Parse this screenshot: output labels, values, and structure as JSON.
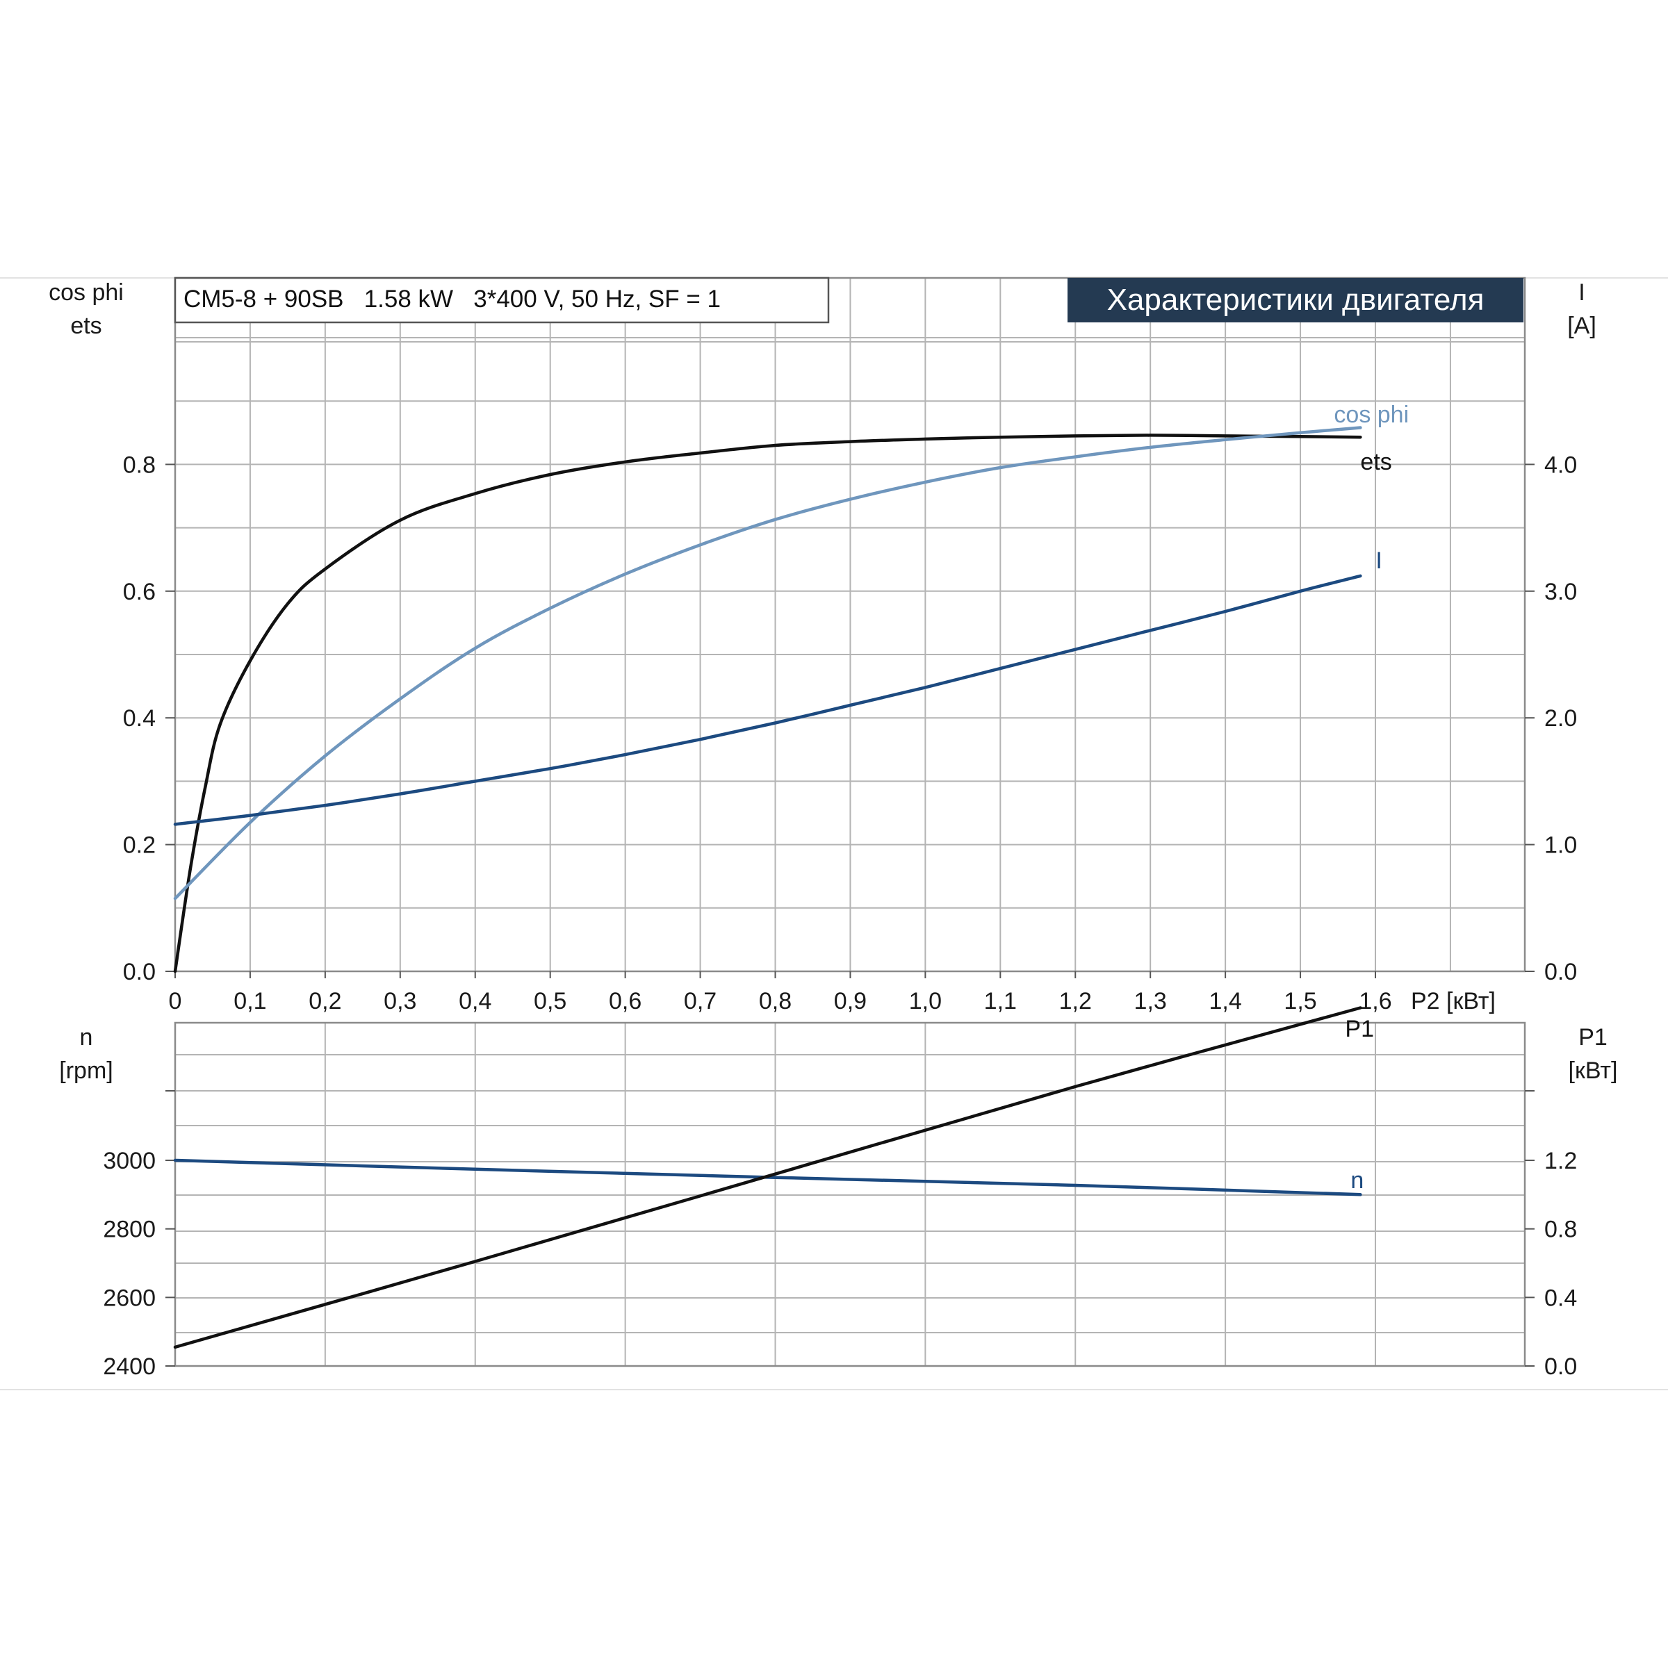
{
  "colors": {
    "ets": "#111111",
    "cos_phi": "#6f96bd",
    "I": "#1c4a80",
    "n": "#1c4a80",
    "P1": "#111111",
    "title_badge_bg": "#243a52",
    "title_badge_text": "#ffffff",
    "grid": "#b4b4b4"
  },
  "header": {
    "model_info": "CM5-8 + 90SB   1.58 kW   3*400 V, 50 Hz, SF = 1",
    "title": "Характеристики двигателя"
  },
  "chart_data": [
    {
      "type": "line",
      "title": "Характеристики двигателя",
      "xlabel": "P2 [кВт]",
      "xlim": [
        0,
        1.8
      ],
      "x_ticks": [
        0,
        0.1,
        0.2,
        0.3,
        0.4,
        0.5,
        0.6,
        0.7,
        0.8,
        0.9,
        1.0,
        1.1,
        1.2,
        1.3,
        1.4,
        1.5,
        1.6
      ],
      "x_tick_labels": [
        "0",
        "0,1",
        "0,2",
        "0,3",
        "0,4",
        "0,5",
        "0,6",
        "0,7",
        "0,8",
        "0,9",
        "1,0",
        "1,1",
        "1,2",
        "1,3",
        "1,4",
        "1,5",
        "1,6"
      ],
      "y_left_label_line1": "cos phi",
      "y_left_label_line2": "ets",
      "y_left_lim": [
        0,
        1.1
      ],
      "y_left_ticks": [
        0.0,
        0.2,
        0.4,
        0.6,
        0.8
      ],
      "y_left_tick_labels": [
        "0.0",
        "0.2",
        "0.4",
        "0.6",
        "0.8"
      ],
      "y_right_label_line1": "I",
      "y_right_label_line2": "[A]",
      "y_right_lim": [
        0,
        5.5
      ],
      "y_right_ticks": [
        0,
        1,
        2,
        3,
        4
      ],
      "y_right_tick_labels": [
        "0.0",
        "1.0",
        "2.0",
        "3.0",
        "4.0"
      ],
      "grid": true,
      "series": [
        {
          "name": "ets",
          "axis": "left",
          "x": [
            0,
            0.02,
            0.04,
            0.06,
            0.1,
            0.15,
            0.2,
            0.3,
            0.4,
            0.5,
            0.6,
            0.7,
            0.8,
            0.9,
            1.0,
            1.1,
            1.2,
            1.3,
            1.4,
            1.5,
            1.58
          ],
          "y": [
            0,
            0.16,
            0.29,
            0.39,
            0.49,
            0.58,
            0.635,
            0.712,
            0.754,
            0.784,
            0.804,
            0.818,
            0.83,
            0.836,
            0.84,
            0.843,
            0.845,
            0.846,
            0.845,
            0.844,
            0.843
          ]
        },
        {
          "name": "cos phi",
          "axis": "left",
          "x": [
            0,
            0.1,
            0.2,
            0.3,
            0.4,
            0.5,
            0.6,
            0.7,
            0.8,
            0.9,
            1.0,
            1.1,
            1.2,
            1.3,
            1.4,
            1.5,
            1.58
          ],
          "y": [
            0.115,
            0.235,
            0.34,
            0.43,
            0.51,
            0.573,
            0.627,
            0.673,
            0.713,
            0.745,
            0.772,
            0.795,
            0.812,
            0.827,
            0.839,
            0.85,
            0.858
          ]
        },
        {
          "name": "I",
          "axis": "right",
          "x": [
            0,
            0.1,
            0.2,
            0.3,
            0.4,
            0.5,
            0.6,
            0.7,
            0.8,
            0.9,
            1.0,
            1.1,
            1.2,
            1.3,
            1.4,
            1.5,
            1.58
          ],
          "y": [
            1.16,
            1.23,
            1.31,
            1.4,
            1.5,
            1.6,
            1.71,
            1.83,
            1.96,
            2.1,
            2.24,
            2.39,
            2.54,
            2.69,
            2.84,
            3.0,
            3.12
          ]
        }
      ]
    },
    {
      "type": "line",
      "xlim": [
        0,
        1.8
      ],
      "y_left_label_line1": "n",
      "y_left_label_line2": "[rpm]",
      "y_left_lim": [
        2400,
        3600
      ],
      "y_left_ticks": [
        2400,
        2600,
        2800,
        3000
      ],
      "y_left_tick_labels": [
        "2400",
        "2600",
        "2800",
        "3000"
      ],
      "y_right_label_line1": "P1",
      "y_right_label_line2": "[кВт]",
      "y_right_lim": [
        0,
        2.4
      ],
      "y_right_ticks": [
        0,
        0.4,
        0.8,
        1.2
      ],
      "y_right_tick_labels": [
        "0.0",
        "0.4",
        "0.8",
        "1.2"
      ],
      "grid": true,
      "series": [
        {
          "name": "n",
          "axis": "left",
          "x": [
            0,
            0.4,
            0.8,
            1.2,
            1.58
          ],
          "y": [
            3000,
            2974,
            2950,
            2927,
            2900
          ]
        },
        {
          "name": "P1",
          "axis": "right",
          "x": [
            0,
            0.4,
            0.8,
            1.2,
            1.58
          ],
          "y": [
            0.11,
            0.61,
            1.12,
            1.63,
            2.09
          ]
        }
      ]
    }
  ]
}
